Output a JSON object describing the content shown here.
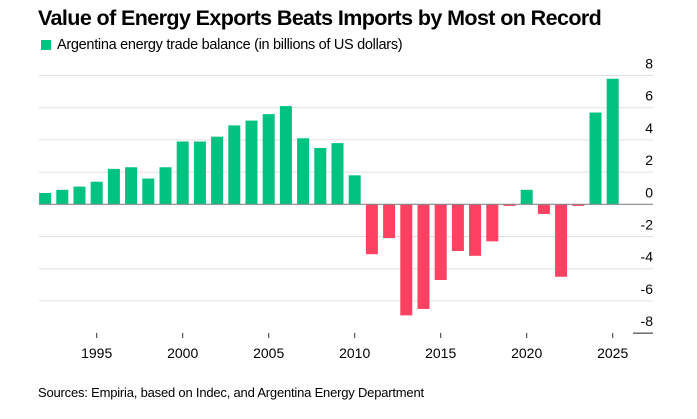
{
  "title": "Value of Energy Exports Beats Imports by Most on Record",
  "source": "Sources: Empiria, based on Indec, and Argentina Energy Department",
  "colors": {
    "positive": "#00c281",
    "negative": "#fd4162",
    "grid": "#e0e0e0",
    "axis": "#888888"
  },
  "chart_data": {
    "type": "bar",
    "title": "Value of Energy Exports Beats Imports by Most on Record",
    "xlabel": "",
    "ylabel": "",
    "legend": [
      {
        "label": "Argentina energy trade balance (in billions of US dollars)",
        "color": "#00c281"
      }
    ],
    "legend_position": "top-left",
    "y_axis_position": "right",
    "grid": true,
    "ylim": [
      -8,
      8
    ],
    "yticks": [
      8,
      6,
      4,
      2,
      0,
      -2,
      -4,
      -6,
      -8
    ],
    "ytick_labels": [
      "8",
      "6",
      "4",
      "2",
      "0",
      "-2",
      "-4",
      "-6",
      "-8"
    ],
    "xticks": [
      1995,
      2000,
      2005,
      2010,
      2015,
      2020,
      2025
    ],
    "xtick_labels": [
      "1995",
      "2000",
      "2005",
      "2010",
      "2015",
      "2020",
      "2025"
    ],
    "categories": [
      1992,
      1993,
      1994,
      1995,
      1996,
      1997,
      1998,
      1999,
      2000,
      2001,
      2002,
      2003,
      2004,
      2005,
      2006,
      2007,
      2008,
      2009,
      2010,
      2011,
      2012,
      2013,
      2014,
      2015,
      2016,
      2017,
      2018,
      2019,
      2020,
      2021,
      2022,
      2023,
      2024,
      2025
    ],
    "series": [
      {
        "name": "Argentina energy trade balance (in billions of US dollars)",
        "values": [
          0.7,
          0.9,
          1.1,
          1.4,
          2.2,
          2.3,
          1.6,
          2.3,
          3.9,
          3.9,
          4.2,
          4.9,
          5.2,
          5.6,
          6.1,
          4.1,
          3.5,
          3.8,
          1.8,
          -3.1,
          -2.1,
          -6.9,
          -6.5,
          -4.7,
          -2.9,
          -3.2,
          -2.3,
          -0.1,
          0.9,
          -0.6,
          -4.5,
          -0.1,
          5.7,
          7.8
        ]
      }
    ]
  }
}
